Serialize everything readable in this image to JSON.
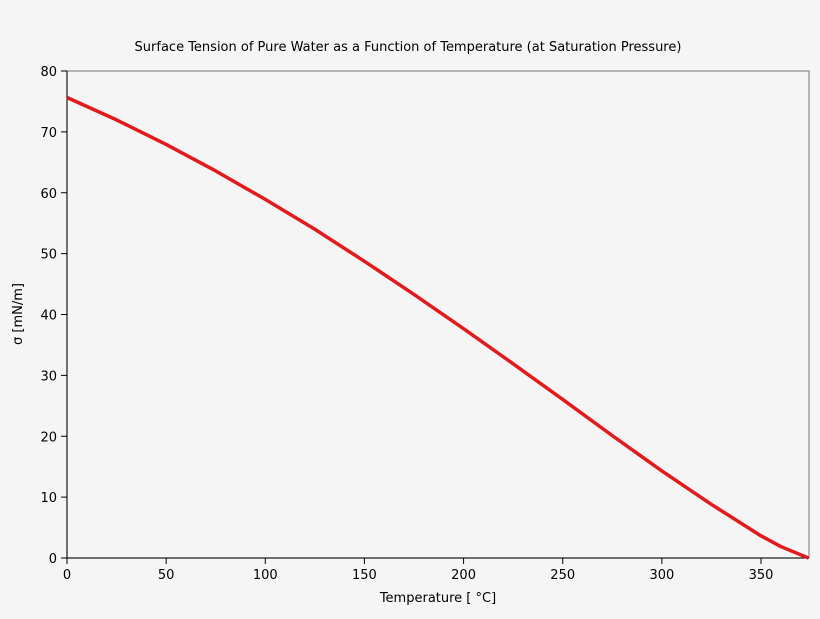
{
  "chart_data": {
    "type": "line",
    "title": "Surface Tension of Pure Water as a Function of Temperature (at Saturation Pressure)",
    "x_label": "Temperature [ °C]",
    "y_label": "σ [mN/m]",
    "series": [
      {
        "name": "σ",
        "color": "#e31a1c",
        "x": [
          0,
          25,
          50,
          75,
          100,
          125,
          150,
          175,
          200,
          225,
          250,
          275,
          300,
          325,
          350,
          360,
          373.946
        ],
        "values": [
          75.65,
          71.97,
          67.94,
          63.58,
          58.91,
          54.0,
          48.74,
          43.3,
          37.67,
          31.9,
          26.04,
          20.1,
          14.3,
          8.8,
          3.64,
          1.88,
          0
        ]
      }
    ],
    "xlim": [
      0,
      374.2
    ],
    "ylim": [
      0,
      80
    ],
    "xticks": [
      0,
      50,
      100,
      150,
      200,
      250,
      300,
      350
    ],
    "yticks": [
      0,
      10,
      20,
      30,
      40,
      50,
      60,
      70,
      80
    ]
  }
}
